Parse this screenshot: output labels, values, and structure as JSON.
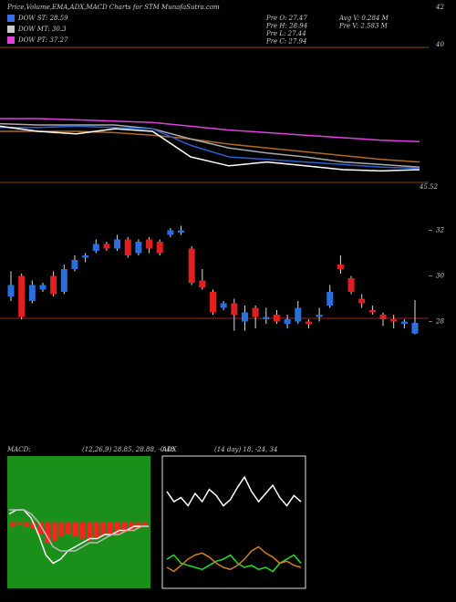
{
  "header": {
    "title": "Price,Volume,EMA,ADX,MACD Charts for STM MunafaSutra.com",
    "top_right": "42",
    "mid_right": "40",
    "legend": [
      {
        "text": "DOW ST: 28.59",
        "color": "#3a6fe0"
      },
      {
        "text": "DOW MT: 30.3",
        "color": "#cccccc"
      },
      {
        "text": "DOW PT: 37.27",
        "color": "#e040e0"
      }
    ],
    "stats": [
      "Pre O: 27.47",
      "Pre H: 28.94",
      "Pre L: 27.44",
      "Pre C: 27.94",
      "Avg V: 0.284  M",
      "Pre  V: 2.583 M"
    ]
  },
  "chart_data": [
    {
      "type": "line",
      "annotation": "45.52",
      "ylim": [
        26,
        36
      ],
      "series": [
        {
          "name": "EMA long",
          "color": "#e040e0",
          "values": [
            31.0,
            31.0,
            30.9,
            30.8,
            30.7,
            30.4,
            30.1,
            29.9,
            29.7,
            29.5,
            29.3,
            29.2
          ]
        },
        {
          "name": "EMA mid",
          "color": "#b06a20",
          "values": [
            30.0,
            30.0,
            30.0,
            29.9,
            29.7,
            29.4,
            29.0,
            28.7,
            28.4,
            28.1,
            27.8,
            27.6
          ]
        },
        {
          "name": "EMA short",
          "color": "#aaaaaa",
          "values": [
            30.6,
            30.5,
            30.5,
            30.5,
            30.2,
            29.4,
            28.7,
            28.3,
            28.0,
            27.6,
            27.4,
            27.2
          ]
        },
        {
          "name": "EMA fast",
          "color": "#2a5fd0",
          "values": [
            30.3,
            30.3,
            30.4,
            30.3,
            30.2,
            28.9,
            28.0,
            27.8,
            27.6,
            27.4,
            27.2,
            27.1
          ]
        },
        {
          "name": "Price",
          "color": "#ffffff",
          "values": [
            30.4,
            30.0,
            29.8,
            30.2,
            30.0,
            28.0,
            27.3,
            27.6,
            27.3,
            27.0,
            26.9,
            27.0
          ]
        }
      ]
    },
    {
      "type": "candlestick",
      "ylim": [
        27.1,
        32.5
      ],
      "yticks": [
        28,
        30,
        32
      ],
      "up_color": "#2a6fe0",
      "down_color": "#e02020",
      "open": [
        29.1,
        30.0,
        28.9,
        29.4,
        30.0,
        29.3,
        30.3,
        30.8,
        31.1,
        31.4,
        31.2,
        31.6,
        31.0,
        31.6,
        31.5,
        31.8,
        31.9,
        31.2,
        29.8,
        29.3,
        28.6,
        28.8,
        28.0,
        28.6,
        28.1,
        28.3,
        27.9,
        28.0,
        28.0,
        28.2,
        28.7,
        30.5,
        29.9,
        29.0,
        28.5,
        28.3,
        28.1,
        27.9,
        27.47
      ],
      "high": [
        30.2,
        30.1,
        29.8,
        29.7,
        30.2,
        30.5,
        30.9,
        31.0,
        31.6,
        31.5,
        31.8,
        31.7,
        31.6,
        31.7,
        31.6,
        32.1,
        32.2,
        31.3,
        30.3,
        29.4,
        28.9,
        29.0,
        28.7,
        28.7,
        28.6,
        28.5,
        28.3,
        28.9,
        28.1,
        28.6,
        29.6,
        30.9,
        30.0,
        29.2,
        28.7,
        28.4,
        28.3,
        28.1,
        28.94
      ],
      "low": [
        28.9,
        28.1,
        28.8,
        29.3,
        29.1,
        29.2,
        30.2,
        30.6,
        31.0,
        31.1,
        31.1,
        30.8,
        30.9,
        31.0,
        30.9,
        31.7,
        31.8,
        29.6,
        29.4,
        28.3,
        28.5,
        27.6,
        27.6,
        27.7,
        27.9,
        27.9,
        27.7,
        27.9,
        27.7,
        28.0,
        28.6,
        30.1,
        29.2,
        28.6,
        28.3,
        27.8,
        27.7,
        27.7,
        27.44
      ],
      "close": [
        29.6,
        28.2,
        29.6,
        29.6,
        29.2,
        30.3,
        30.7,
        30.9,
        31.4,
        31.2,
        31.6,
        30.9,
        31.5,
        31.2,
        31.0,
        32.0,
        32.0,
        29.7,
        29.5,
        28.4,
        28.8,
        28.3,
        28.4,
        28.2,
        28.2,
        28.0,
        28.1,
        28.6,
        27.9,
        28.3,
        29.3,
        30.3,
        29.3,
        28.8,
        28.4,
        28.1,
        28.0,
        28.0,
        27.94
      ]
    },
    {
      "type": "macd",
      "label": "MACD:",
      "params": "(12,26,9) 28.85, 28.88, -0.48",
      "ylim": [
        -1.5,
        1.5
      ],
      "histogram": {
        "color": "#ff2020",
        "values": [
          -0.1,
          -0.05,
          -0.1,
          -0.15,
          -0.3,
          -0.5,
          -0.45,
          -0.35,
          -0.3,
          -0.35,
          -0.4,
          -0.45,
          -0.4,
          -0.35,
          -0.3,
          -0.3,
          -0.25,
          -0.2,
          -0.15,
          -0.1
        ]
      },
      "series": [
        {
          "name": "MACD",
          "color": "#ffffff",
          "values": [
            0.2,
            0.3,
            0.3,
            0.1,
            -0.3,
            -0.8,
            -1.0,
            -0.9,
            -0.7,
            -0.6,
            -0.5,
            -0.4,
            -0.4,
            -0.3,
            -0.3,
            -0.2,
            -0.2,
            -0.1,
            -0.1,
            -0.1
          ]
        },
        {
          "name": "Signal",
          "color": "#bbbbbb",
          "values": [
            0.3,
            0.3,
            0.3,
            0.2,
            0.0,
            -0.3,
            -0.6,
            -0.7,
            -0.7,
            -0.7,
            -0.6,
            -0.5,
            -0.5,
            -0.4,
            -0.3,
            -0.3,
            -0.2,
            -0.2,
            -0.1,
            -0.1
          ]
        }
      ]
    },
    {
      "type": "adx",
      "label": "ADX",
      "params": "(14 day) 18, -24, 34",
      "ylim": [
        0,
        60
      ],
      "series": [
        {
          "name": "ADX",
          "color": "#ffffff",
          "values": [
            45,
            40,
            42,
            38,
            44,
            40,
            46,
            43,
            38,
            41,
            47,
            52,
            45,
            40,
            44,
            48,
            42,
            38,
            43,
            40
          ]
        },
        {
          "name": "+DI",
          "color": "#20e020",
          "values": [
            12,
            14,
            10,
            9,
            8,
            7,
            9,
            11,
            12,
            14,
            10,
            8,
            9,
            7,
            8,
            6,
            10,
            12,
            14,
            10
          ]
        },
        {
          "name": "-DI",
          "color": "#d08020",
          "values": [
            8,
            6,
            9,
            12,
            14,
            15,
            13,
            10,
            8,
            7,
            9,
            12,
            16,
            18,
            15,
            13,
            10,
            11,
            9,
            8
          ]
        }
      ]
    }
  ]
}
